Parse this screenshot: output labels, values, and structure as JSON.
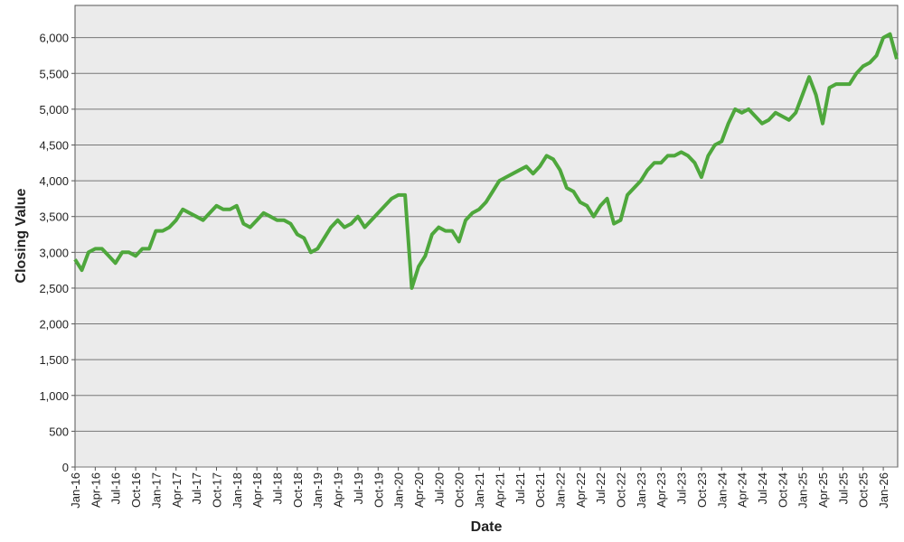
{
  "chart_data": {
    "type": "line",
    "x_label": "Date",
    "y_label": "Closing Value",
    "x": [
      "Jan-16",
      "Feb-16",
      "Mar-16",
      "Apr-16",
      "May-16",
      "Jun-16",
      "Jul-16",
      "Aug-16",
      "Sep-16",
      "Oct-16",
      "Nov-16",
      "Dec-16",
      "Jan-17",
      "Feb-17",
      "Mar-17",
      "Apr-17",
      "May-17",
      "Jun-17",
      "Jul-17",
      "Aug-17",
      "Sep-17",
      "Oct-17",
      "Nov-17",
      "Dec-17",
      "Jan-18",
      "Feb-18",
      "Mar-18",
      "Apr-18",
      "May-18",
      "Jun-18",
      "Jul-18",
      "Aug-18",
      "Sep-18",
      "Oct-18",
      "Nov-18",
      "Dec-18",
      "Jan-19",
      "Feb-19",
      "Mar-19",
      "Apr-19",
      "May-19",
      "Jun-19",
      "Jul-19",
      "Aug-19",
      "Sep-19",
      "Oct-19",
      "Nov-19",
      "Dec-19",
      "Jan-20",
      "Feb-20",
      "Mar-20",
      "Apr-20",
      "May-20",
      "Jun-20",
      "Jul-20",
      "Aug-20",
      "Sep-20",
      "Oct-20",
      "Nov-20",
      "Dec-20",
      "Jan-21",
      "Feb-21",
      "Mar-21",
      "Apr-21",
      "May-21",
      "Jun-21",
      "Jul-21",
      "Aug-21",
      "Sep-21",
      "Oct-21",
      "Nov-21",
      "Dec-21",
      "Jan-22",
      "Feb-22",
      "Mar-22",
      "Apr-22",
      "May-22",
      "Jun-22",
      "Jul-22",
      "Aug-22",
      "Sep-22",
      "Oct-22",
      "Nov-22",
      "Dec-22",
      "Jan-23",
      "Feb-23",
      "Mar-23",
      "Apr-23",
      "May-23",
      "Jun-23",
      "Jul-23",
      "Aug-23",
      "Sep-23",
      "Oct-23",
      "Nov-23",
      "Dec-23",
      "Jan-24",
      "Feb-24",
      "Mar-24",
      "Apr-24",
      "May-24",
      "Jun-24",
      "Jul-24",
      "Aug-24",
      "Sep-24",
      "Oct-24",
      "Nov-24",
      "Dec-24",
      "Jan-25",
      "Feb-25",
      "Mar-25",
      "Apr-25",
      "May-25",
      "Jun-25",
      "Jul-25",
      "Aug-25",
      "Sep-25",
      "Oct-25",
      "Nov-25",
      "Dec-25",
      "Jan-26",
      "Feb-26",
      "Mar-26"
    ],
    "values": [
      2900,
      2750,
      3000,
      3050,
      3050,
      2950,
      2850,
      3000,
      3000,
      2950,
      3050,
      3050,
      3300,
      3300,
      3350,
      3450,
      3600,
      3550,
      3500,
      3450,
      3550,
      3650,
      3600,
      3600,
      3650,
      3400,
      3350,
      3450,
      3550,
      3500,
      3450,
      3450,
      3400,
      3250,
      3200,
      3000,
      3050,
      3200,
      3350,
      3450,
      3350,
      3400,
      3500,
      3350,
      3450,
      3550,
      3650,
      3750,
      3800,
      3800,
      2500,
      2800,
      2950,
      3250,
      3350,
      3300,
      3300,
      3150,
      3450,
      3550,
      3600,
      3700,
      3850,
      4000,
      4050,
      4100,
      4150,
      4200,
      4100,
      4200,
      4350,
      4300,
      4150,
      3900,
      3850,
      3700,
      3650,
      3500,
      3650,
      3750,
      3400,
      3450,
      3800,
      3900,
      4000,
      4150,
      4250,
      4250,
      4350,
      4350,
      4400,
      4350,
      4250,
      4050,
      4350,
      4500,
      4550,
      4800,
      5000,
      4950,
      5000,
      4900,
      4800,
      4850,
      4950,
      4900,
      4850,
      4950,
      5200,
      5450,
      5200,
      4800,
      5300,
      5350,
      5350,
      5350,
      5500,
      5600,
      5650,
      5750,
      6000,
      6050,
      5700
    ],
    "color": "#4ea73c",
    "xticks": [
      "Jan-16",
      "Apr-16",
      "Jul-16",
      "Oct-16",
      "Jan-17",
      "Apr-17",
      "Jul-17",
      "Oct-17",
      "Jan-18",
      "Apr-18",
      "Jul-18",
      "Oct-18",
      "Jan-19",
      "Apr-19",
      "Jul-19",
      "Oct-19",
      "Jan-20",
      "Apr-20",
      "Jul-20",
      "Oct-20",
      "Jan-21",
      "Apr-21",
      "Jul-21",
      "Oct-21",
      "Jan-22",
      "Apr-22",
      "Jul-22",
      "Oct-22",
      "Jan-23",
      "Apr-23",
      "Jul-23",
      "Oct-23",
      "Jan-24",
      "Apr-24",
      "Jul-24",
      "Oct-24",
      "Jan-25",
      "Apr-25",
      "Jul-25",
      "Oct-25",
      "Jan-26"
    ],
    "ylim": [
      0,
      6450
    ],
    "yticks": [
      0,
      500,
      {
        "value": 1000,
        "label": "1,000"
      },
      {
        "value": 1500,
        "label": "1,500"
      },
      {
        "value": 2000,
        "label": "2,000"
      },
      {
        "value": 2500,
        "label": "2,500"
      },
      {
        "value": 3000,
        "label": "3,000"
      },
      {
        "value": 3500,
        "label": "3,500"
      },
      {
        "value": 4000,
        "label": "4,000"
      },
      {
        "value": 4500,
        "label": "4,500"
      },
      {
        "value": 5000,
        "label": "5,000"
      },
      {
        "value": 5500,
        "label": "5,500"
      },
      {
        "value": 6000,
        "label": "6,000"
      }
    ],
    "grid": true
  }
}
